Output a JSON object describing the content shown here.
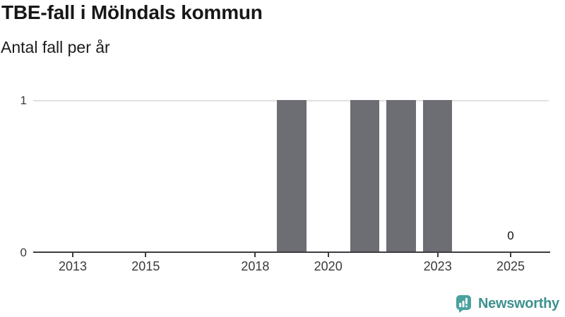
{
  "header": {
    "title": "TBE-fall i Mölndals kommun",
    "subtitle": "Antal fall per år"
  },
  "chart_data": {
    "type": "bar",
    "title": "TBE-fall i Mölndals kommun",
    "subtitle": "Antal fall per år",
    "ylabel": "Antal fall per år",
    "xlabel": "",
    "categories": [
      2012,
      2013,
      2014,
      2015,
      2016,
      2017,
      2018,
      2019,
      2020,
      2021,
      2022,
      2023,
      2024,
      2025
    ],
    "values": [
      0,
      0,
      0,
      0,
      0,
      0,
      0,
      1,
      0,
      1,
      1,
      1,
      0,
      0
    ],
    "x_tick_labels": [
      "2013",
      "2015",
      "2018",
      "2020",
      "2023",
      "2025"
    ],
    "y_ticks": [
      0,
      1
    ],
    "y_tick_labels": [
      "0",
      "1"
    ],
    "ylim": [
      0,
      1
    ],
    "grid": "horizontal gridline at y=1 only",
    "legend": "none",
    "annotations": [
      {
        "x": 2025,
        "text": "0"
      }
    ],
    "bar_color": "#6d6d74"
  },
  "colors": {
    "background": "#ffffff",
    "title_text": "#171717",
    "subtitle_text": "#1d1d1d",
    "bar": "#6d6d74",
    "gridline": "#e1e1e1",
    "axis_line": "#3d3d41",
    "tick_label": "#3a3a3a",
    "annotation_text": "#111111",
    "logo_icon_teal": "#4aa29e",
    "logo_text_teal": "#3d918e"
  },
  "footer": {
    "brand": "Newsworthy",
    "icon": "newsworthy-chart-bubble-icon"
  }
}
